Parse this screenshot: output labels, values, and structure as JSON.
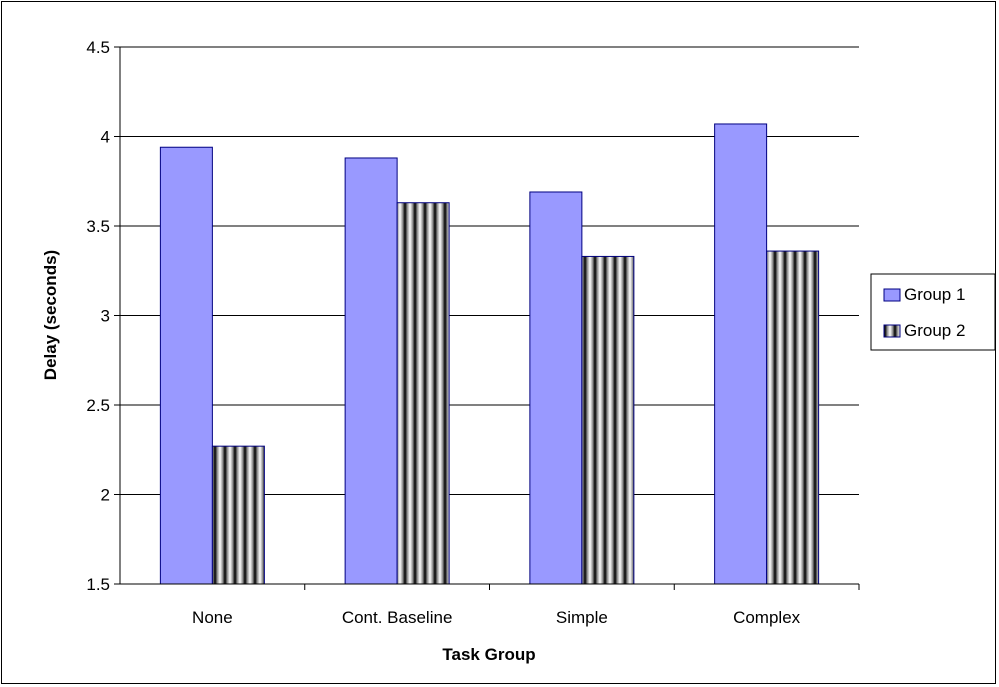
{
  "chart_data": {
    "type": "bar",
    "categories": [
      "None",
      "Cont. Baseline",
      "Simple",
      "Complex"
    ],
    "series": [
      {
        "name": "Group 1",
        "values": [
          3.94,
          3.88,
          3.69,
          4.07
        ],
        "color": "#9999ff",
        "pattern": "solid"
      },
      {
        "name": "Group 2",
        "values": [
          2.27,
          3.63,
          3.33,
          3.36
        ],
        "color": "#000000",
        "pattern": "vertical-stripes"
      }
    ],
    "title": "",
    "xlabel": "Task Group",
    "ylabel": "Delay (seconds)",
    "ylim": [
      1.5,
      4.5
    ],
    "yticks": [
      "1.5",
      "2",
      "2.5",
      "3",
      "3.5",
      "4",
      "4.5"
    ],
    "grid": true,
    "legend_position": "right"
  }
}
